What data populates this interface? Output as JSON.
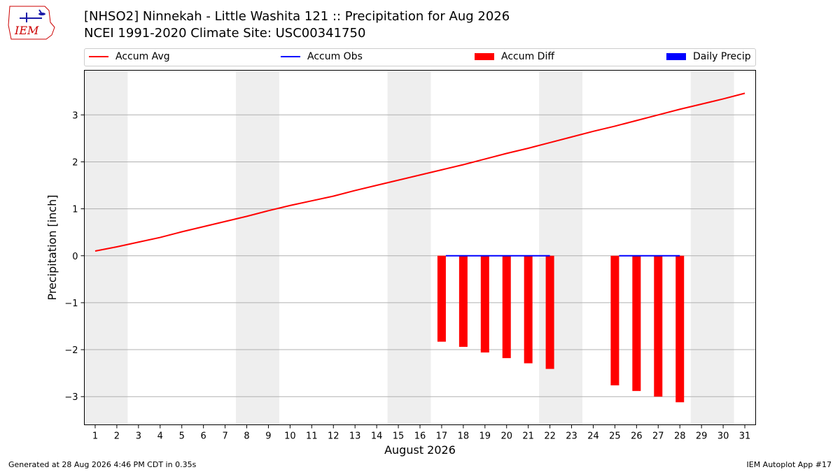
{
  "header": {
    "logo_text": "IEM",
    "title_line1": "[NHSO2] Ninnekah - Little Washita 121 :: Precipitation for Aug 2026",
    "title_line2": "NCEI 1991-2020 Climate Site: USC00341750"
  },
  "legend": {
    "items": [
      {
        "label": "Accum Avg",
        "kind": "line",
        "color": "#ff0000"
      },
      {
        "label": "Accum Obs",
        "kind": "line",
        "color": "#0000ff"
      },
      {
        "label": "Accum Diff",
        "kind": "box",
        "color": "#ff0000"
      },
      {
        "label": "Daily Precip",
        "kind": "box",
        "color": "#0000ff"
      }
    ]
  },
  "footer": {
    "left": "Generated at 28 Aug 2026 4:46 PM CDT in 0.35s",
    "right": "IEM Autoplot App #17"
  },
  "chart_data": {
    "type": "bar",
    "xlabel": "August 2026",
    "ylabel": "Precipitation [inch]",
    "xlim": [
      0.5,
      31.5
    ],
    "ylim": [
      -3.6,
      3.95
    ],
    "x_ticks": [
      1,
      2,
      3,
      4,
      5,
      6,
      7,
      8,
      9,
      10,
      11,
      12,
      13,
      14,
      15,
      16,
      17,
      18,
      19,
      20,
      21,
      22,
      23,
      24,
      25,
      26,
      27,
      28,
      29,
      30,
      31
    ],
    "y_ticks": [
      -3,
      -2,
      -1,
      0,
      1,
      2,
      3
    ],
    "y_tick_labels": [
      "−3",
      "−2",
      "−1",
      "0",
      "1",
      "2",
      "3"
    ],
    "grid": "horizontal",
    "weekend_shading": [
      [
        0.5,
        2.5
      ],
      [
        7.5,
        9.5
      ],
      [
        14.5,
        16.5
      ],
      [
        21.5,
        23.5
      ],
      [
        28.5,
        30.5
      ]
    ],
    "shade_color": "#eeeeee",
    "accum_avg": {
      "name": "Accum Avg",
      "color": "#ff0000",
      "x": [
        1,
        2,
        3,
        4,
        5,
        6,
        7,
        8,
        9,
        10,
        11,
        12,
        13,
        14,
        15,
        16,
        17,
        18,
        19,
        20,
        21,
        22,
        23,
        24,
        25,
        26,
        27,
        28,
        29,
        30,
        31
      ],
      "values": [
        0.1,
        0.19,
        0.29,
        0.39,
        0.51,
        0.62,
        0.73,
        0.84,
        0.96,
        1.07,
        1.17,
        1.27,
        1.39,
        1.5,
        1.61,
        1.72,
        1.83,
        1.94,
        2.06,
        2.18,
        2.29,
        2.41,
        2.53,
        2.65,
        2.76,
        2.88,
        3.0,
        3.12,
        3.23,
        3.34,
        3.46
      ]
    },
    "accum_obs_segments": [
      {
        "name": "Accum Obs",
        "color": "#0000ff",
        "x": [
          17,
          18,
          19,
          20,
          21,
          22
        ],
        "values": [
          0,
          0,
          0,
          0,
          0,
          0
        ]
      },
      {
        "name": "Accum Obs",
        "color": "#0000ff",
        "x": [
          25,
          26,
          27,
          28
        ],
        "values": [
          0,
          0,
          0,
          0
        ]
      }
    ],
    "accum_diff": {
      "name": "Accum Diff",
      "color": "#ff0000",
      "x": [
        17,
        18,
        19,
        20,
        21,
        22,
        25,
        26,
        27,
        28
      ],
      "values": [
        -1.83,
        -1.94,
        -2.06,
        -2.18,
        -2.29,
        -2.41,
        -2.76,
        -2.88,
        -3.0,
        -3.12
      ]
    },
    "daily_precip": {
      "name": "Daily Precip",
      "color": "#0000ff",
      "x": [],
      "values": []
    }
  }
}
